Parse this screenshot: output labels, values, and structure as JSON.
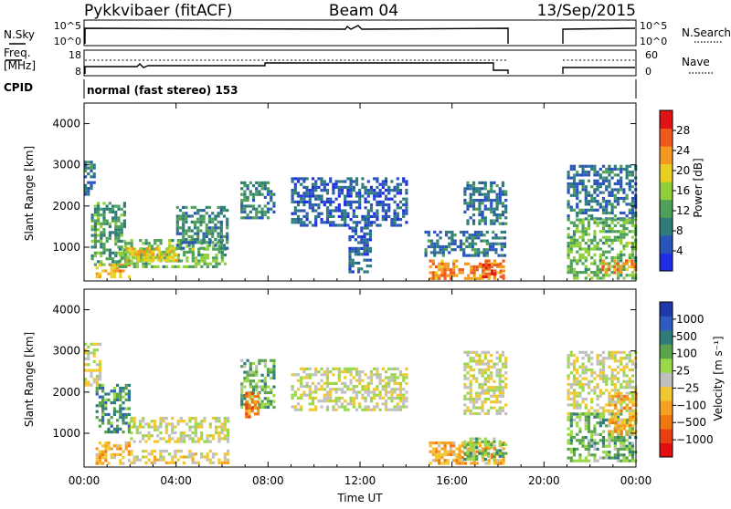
{
  "header": {
    "station": "Pykkvibaer (fitACF)",
    "beam": "Beam 04",
    "date": "13/Sep/2015"
  },
  "panels": {
    "noise": {
      "left_label": "N.Sky",
      "right_label": "N.Search",
      "left_ticks": [
        "10^5",
        "10^0"
      ],
      "right_ticks": [
        "10^5",
        "10^0"
      ]
    },
    "freq": {
      "left_label_1": "Freq.",
      "left_label_2": "[MHz]",
      "right_label": "Nave",
      "left_ticks": [
        "18",
        "8"
      ],
      "right_ticks": [
        "60",
        "0"
      ]
    },
    "cpid": {
      "label": "CPID",
      "text": "normal (fast stereo) 153"
    }
  },
  "axes": {
    "ylabel": "Slant Range [km]",
    "xlabel": "Time UT",
    "yticks": [
      "1000",
      "2000",
      "3000",
      "4000"
    ],
    "xticks": [
      "00:00",
      "04:00",
      "08:00",
      "12:00",
      "16:00",
      "20:00",
      "00:00"
    ]
  },
  "colorbars": {
    "power": {
      "label": "Power [dB]",
      "ticks": [
        "4",
        "8",
        "12",
        "16",
        "20",
        "24",
        "28"
      ],
      "colors": [
        "#1f2ee6",
        "#2a55b8",
        "#2f7d7a",
        "#4fa05a",
        "#8fcf3a",
        "#e8d020",
        "#f59a20",
        "#ef5a1c",
        "#e01414"
      ]
    },
    "velocity": {
      "label": "Velocity [m s⁻¹]",
      "ticks": [
        "1000",
        "500",
        "100",
        "25",
        "−25",
        "−100",
        "−500",
        "−1000"
      ],
      "colors": [
        "#1f3aa8",
        "#2f5cc0",
        "#2f7d7a",
        "#5aa34a",
        "#9ad84a",
        "#c0c0c0",
        "#f2c830",
        "#f5a020",
        "#f07810",
        "#e84010",
        "#e01010"
      ]
    }
  },
  "chart_data": [
    {
      "type": "heatmap",
      "title": "Power",
      "xlabel": "Time UT",
      "ylabel": "Slant Range [km]",
      "xlim": [
        "00:00",
        "24:00"
      ],
      "ylim": [
        180,
        4500
      ],
      "colorbar_label": "Power [dB]",
      "colorbar_range": [
        0,
        32
      ],
      "data_gap": [
        "18:40",
        "21:00"
      ],
      "regions": [
        {
          "t": [
            0.0,
            0.5
          ],
          "r": [
            2300,
            3100
          ],
          "v": 8
        },
        {
          "t": [
            0.3,
            1.8
          ],
          "r": [
            600,
            2100
          ],
          "v": 12
        },
        {
          "t": [
            0.5,
            2.0
          ],
          "r": [
            300,
            600
          ],
          "v": 22
        },
        {
          "t": [
            1.5,
            6.2
          ],
          "r": [
            500,
            1200
          ],
          "v": 14
        },
        {
          "t": [
            1.8,
            4.0
          ],
          "r": [
            700,
            1000
          ],
          "v": 20
        },
        {
          "t": [
            4.0,
            6.2
          ],
          "r": [
            1000,
            2000
          ],
          "v": 10
        },
        {
          "t": [
            6.8,
            8.2
          ],
          "r": [
            1700,
            2600
          ],
          "v": 10
        },
        {
          "t": [
            9.0,
            14.0
          ],
          "r": [
            1500,
            2700
          ],
          "v": 6
        },
        {
          "t": [
            11.5,
            12.5
          ],
          "r": [
            400,
            1500
          ],
          "v": 6
        },
        {
          "t": [
            14.8,
            18.3
          ],
          "r": [
            800,
            1400
          ],
          "v": 8
        },
        {
          "t": [
            15.0,
            18.3
          ],
          "r": [
            250,
            700
          ],
          "v": 24
        },
        {
          "t": [
            17.3,
            18.2
          ],
          "r": [
            300,
            600
          ],
          "v": 28
        },
        {
          "t": [
            16.5,
            18.4
          ],
          "r": [
            1600,
            2600
          ],
          "v": 8
        },
        {
          "t": [
            21.0,
            24.0
          ],
          "r": [
            1700,
            3000
          ],
          "v": 8
        },
        {
          "t": [
            21.0,
            24.0
          ],
          "r": [
            250,
            1700
          ],
          "v": 14
        },
        {
          "t": [
            22.5,
            24.0
          ],
          "r": [
            350,
            700
          ],
          "v": 24
        }
      ]
    },
    {
      "type": "heatmap",
      "title": "Velocity",
      "xlabel": "Time UT",
      "ylabel": "Slant Range [km]",
      "xlim": [
        "00:00",
        "24:00"
      ],
      "ylim": [
        180,
        4500
      ],
      "colorbar_label": "Velocity [m s⁻¹]",
      "colorbar_range": [
        -1000,
        1000
      ],
      "data_gap": [
        "18:40",
        "21:00"
      ],
      "regions": [
        {
          "t": [
            0.0,
            0.7
          ],
          "r": [
            2200,
            3200
          ],
          "v": 0
        },
        {
          "t": [
            0.5,
            2.0
          ],
          "r": [
            1000,
            2200
          ],
          "v": 500
        },
        {
          "t": [
            0.5,
            2.0
          ],
          "r": [
            300,
            800
          ],
          "v": -300
        },
        {
          "t": [
            2.0,
            6.2
          ],
          "r": [
            800,
            1400
          ],
          "v": 0
        },
        {
          "t": [
            2.0,
            6.2
          ],
          "r": [
            250,
            600
          ],
          "v": -100
        },
        {
          "t": [
            6.8,
            8.2
          ],
          "r": [
            1600,
            2800
          ],
          "v": 300
        },
        {
          "t": [
            7.0,
            7.6
          ],
          "r": [
            1400,
            2000
          ],
          "v": -500
        },
        {
          "t": [
            9.0,
            14.0
          ],
          "r": [
            1600,
            2600
          ],
          "v": 0
        },
        {
          "t": [
            15.0,
            18.3
          ],
          "r": [
            300,
            800
          ],
          "v": -300
        },
        {
          "t": [
            16.5,
            18.3
          ],
          "r": [
            400,
            900
          ],
          "v": 300
        },
        {
          "t": [
            16.5,
            18.4
          ],
          "r": [
            1500,
            3000
          ],
          "v": 0
        },
        {
          "t": [
            21.0,
            24.0
          ],
          "r": [
            1500,
            3000
          ],
          "v": 0
        },
        {
          "t": [
            21.0,
            24.0
          ],
          "r": [
            300,
            1500
          ],
          "v": 300
        },
        {
          "t": [
            22.8,
            24.0
          ],
          "r": [
            1000,
            2000
          ],
          "v": -300
        }
      ]
    }
  ]
}
